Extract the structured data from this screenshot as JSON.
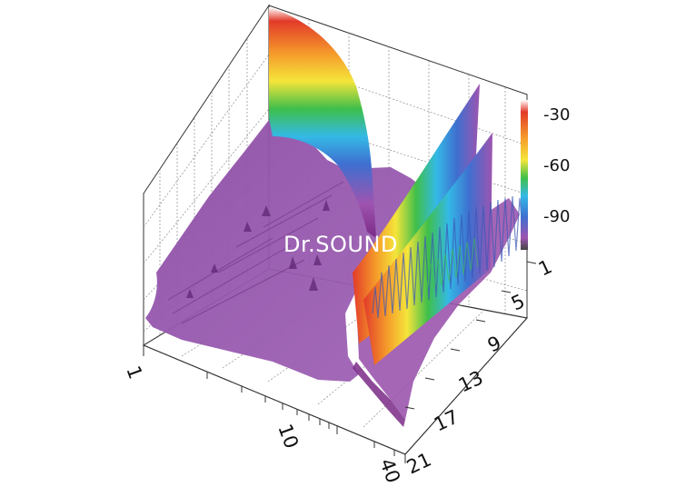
{
  "chart_data": {
    "type": "surface-3d waterfall",
    "watermark": "Dr.SOUND",
    "x_axis": {
      "scale": "log",
      "tick_labels": [
        "1",
        "10",
        "40"
      ]
    },
    "y_axis": {
      "tick_labels": [
        "1",
        "5",
        "9",
        "13",
        "17",
        "21"
      ],
      "range": [
        1,
        21
      ]
    },
    "z_axis": {
      "tick_labels": [
        "-30",
        "-60",
        "-90"
      ],
      "range": [
        -110,
        -20
      ]
    },
    "colormap": [
      "#7a2a86",
      "#9e54b0",
      "#3e6fd0",
      "#34b9e6",
      "#3fbf4a",
      "#b9d92c",
      "#f5e53a",
      "#f59a2a",
      "#e23a2a"
    ],
    "grid": true,
    "legend": "color bar right of plot",
    "series": [
      {
        "peak_level": -28,
        "position": "near 10 axis, rear",
        "shape": "decaying ridge"
      },
      {
        "peak_level": -45,
        "position": "between 10 and 40, rear",
        "shape": "diagonal ridge"
      },
      {
        "peak_level": -65,
        "position": "between 10 and 40, front",
        "shape": "diagonal ridge"
      }
    ]
  }
}
